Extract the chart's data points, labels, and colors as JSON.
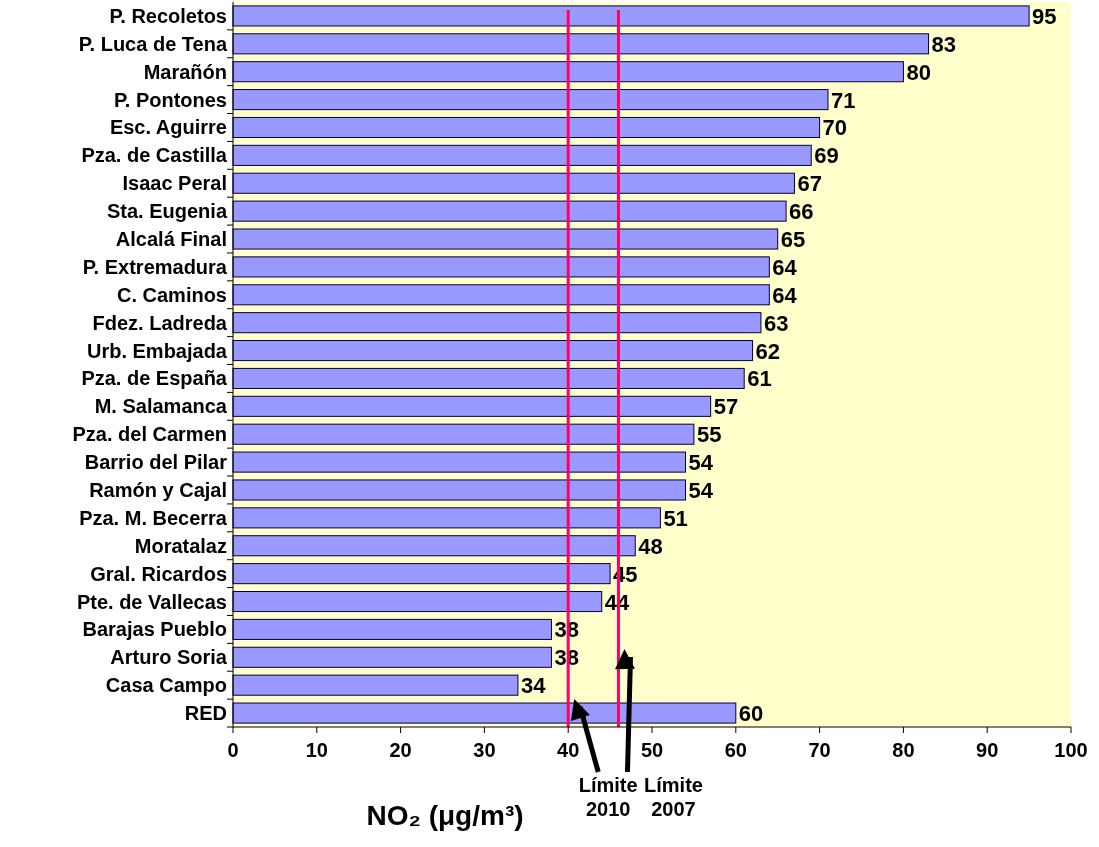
{
  "chart_data": {
    "type": "bar",
    "orientation": "horizontal",
    "xlabel": "NO₂ (μg/m³)",
    "categories": [
      "P. Recoletos",
      "P. Luca de Tena",
      "Marañón",
      "P. Pontones",
      "Esc. Aguirre",
      "Pza. de Castilla",
      "Isaac Peral",
      "Sta. Eugenia",
      "Alcalá Final",
      "P. Extremadura",
      "C. Caminos",
      "Fdez. Ladreda",
      "Urb. Embajada",
      "Pza. de España",
      "M. Salamanca",
      "Pza. del Carmen",
      "Barrio del Pilar",
      "Ramón y Cajal",
      "Pza. M. Becerra",
      "Moratalaz",
      "Gral. Ricardos",
      "Pte. de Vallecas",
      "Barajas Pueblo",
      "Arturo Soria",
      "Casa Campo",
      "RED"
    ],
    "values": [
      95,
      83,
      80,
      71,
      70,
      69,
      67,
      66,
      65,
      64,
      64,
      63,
      62,
      61,
      57,
      55,
      54,
      54,
      51,
      48,
      45,
      44,
      38,
      38,
      34,
      60
    ],
    "color": "#9999ff",
    "xlim": [
      0,
      100
    ],
    "xticks": [
      0,
      10,
      20,
      30,
      40,
      50,
      60,
      70,
      80,
      90,
      100
    ],
    "data_labels": true,
    "ref_lines": [
      {
        "axis": "x",
        "value": 40,
        "label": "Límite 2010",
        "color": "#ff0066"
      },
      {
        "axis": "x",
        "value": 46,
        "label": "Límite 2007",
        "color": "#ff0066"
      }
    ]
  }
}
